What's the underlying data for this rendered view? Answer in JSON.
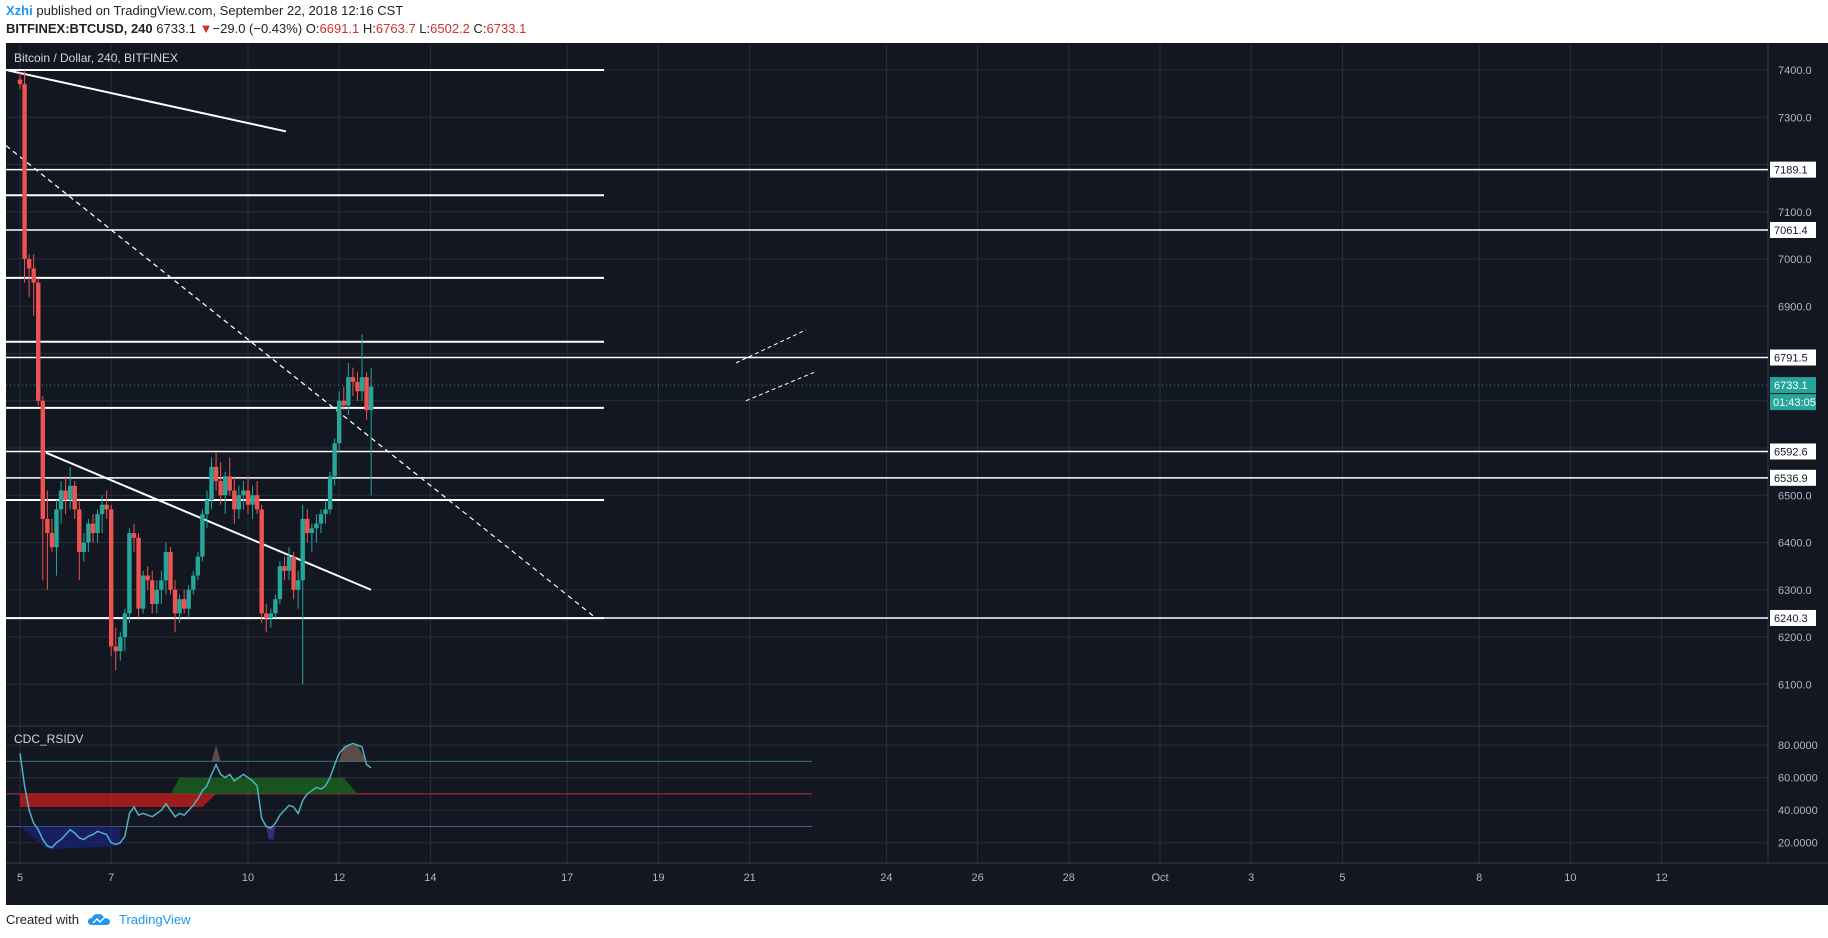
{
  "header": {
    "user": "Xzhi",
    "published_text": "published on TradingView.com, September 22, 2018 12:16 CST",
    "symbol": "BITFINEX:BTCUSD, 240",
    "last": "6733.1",
    "change_arrow": "▼",
    "change": "−29.0 (−0.43%)",
    "o_label": "O:",
    "o": "6691.1",
    "h_label": "H:",
    "h": "6763.7",
    "l_label": "L:",
    "l": "6502.2",
    "c_label": "C:",
    "c": "6733.1"
  },
  "footer": {
    "created_with": "Created with",
    "brand": "TradingView",
    "logo_icon": "tradingview-cloud-icon"
  },
  "colors": {
    "background": "#131722",
    "up": "#26a69a",
    "down": "#ef5350",
    "grid": "#2a2e39",
    "text": "#b2b5be",
    "level": "#ffffff"
  },
  "chart_data": {
    "type": "candlestick",
    "title": "Bitcoin / Dollar, 240, BITFINEX",
    "price_axis": {
      "ticks": [
        "7400.0",
        "7300.0",
        "7100.0",
        "7000.0",
        "6900.0",
        "6500.0",
        "6400.0",
        "6300.0",
        "6200.0",
        "6100.0"
      ],
      "range": [
        6050,
        7450
      ]
    },
    "time_axis": {
      "ticks": [
        "5",
        "7",
        "10",
        "12",
        "14",
        "17",
        "19",
        "21",
        "24",
        "26",
        "28",
        "Oct",
        "3",
        "5",
        "8",
        "10",
        "12"
      ]
    },
    "horizontal_levels": [
      "7189.1",
      "7061.4",
      "6791.5",
      "6592.6",
      "6536.9",
      "6240.3"
    ],
    "short_levels": [
      7400,
      7135,
      6960,
      6825,
      6685,
      6490,
      6240
    ],
    "last_price": "6733.1",
    "countdown": "01:43:05",
    "candles": [
      [
        5.0,
        7380,
        7395,
        7360,
        7370
      ],
      [
        5.1,
        7370,
        7400,
        6950,
        7000
      ],
      [
        5.2,
        7000,
        7010,
        6920,
        6980
      ],
      [
        5.3,
        6980,
        7010,
        6880,
        6950
      ],
      [
        5.4,
        6950,
        6960,
        6690,
        6700
      ],
      [
        5.5,
        6700,
        6710,
        6320,
        6450
      ],
      [
        5.6,
        6450,
        6510,
        6300,
        6420
      ],
      [
        5.7,
        6420,
        6450,
        6380,
        6390
      ],
      [
        5.8,
        6390,
        6490,
        6330,
        6470
      ],
      [
        5.9,
        6470,
        6530,
        6440,
        6510
      ],
      [
        6.0,
        6510,
        6540,
        6460,
        6490
      ],
      [
        6.1,
        6490,
        6560,
        6470,
        6520
      ],
      [
        6.2,
        6520,
        6530,
        6450,
        6470
      ],
      [
        6.3,
        6470,
        6490,
        6320,
        6380
      ],
      [
        6.4,
        6380,
        6420,
        6360,
        6400
      ],
      [
        6.5,
        6400,
        6450,
        6380,
        6440
      ],
      [
        6.6,
        6440,
        6460,
        6400,
        6420
      ],
      [
        6.7,
        6420,
        6470,
        6400,
        6460
      ],
      [
        6.8,
        6460,
        6500,
        6420,
        6480
      ],
      [
        6.9,
        6480,
        6510,
        6450,
        6470
      ],
      [
        7.0,
        6470,
        6480,
        6160,
        6180
      ],
      [
        7.1,
        6180,
        6220,
        6130,
        6170
      ],
      [
        7.2,
        6170,
        6210,
        6150,
        6200
      ],
      [
        7.3,
        6200,
        6260,
        6170,
        6250
      ],
      [
        7.4,
        6250,
        6430,
        6230,
        6420
      ],
      [
        7.5,
        6420,
        6440,
        6380,
        6410
      ],
      [
        7.6,
        6410,
        6420,
        6240,
        6260
      ],
      [
        7.7,
        6260,
        6340,
        6250,
        6330
      ],
      [
        7.8,
        6330,
        6350,
        6300,
        6320
      ],
      [
        7.9,
        6320,
        6340,
        6250,
        6270
      ],
      [
        8.0,
        6270,
        6320,
        6250,
        6300
      ],
      [
        8.1,
        6300,
        6340,
        6270,
        6320
      ],
      [
        8.2,
        6320,
        6400,
        6290,
        6380
      ],
      [
        8.3,
        6380,
        6390,
        6290,
        6300
      ],
      [
        8.4,
        6300,
        6320,
        6210,
        6250
      ],
      [
        8.5,
        6250,
        6290,
        6230,
        6280
      ],
      [
        8.6,
        6280,
        6300,
        6250,
        6260
      ],
      [
        8.7,
        6260,
        6310,
        6240,
        6300
      ],
      [
        8.8,
        6300,
        6340,
        6290,
        6330
      ],
      [
        8.9,
        6330,
        6380,
        6320,
        6370
      ],
      [
        9.0,
        6370,
        6470,
        6360,
        6460
      ],
      [
        9.1,
        6460,
        6510,
        6430,
        6490
      ],
      [
        9.2,
        6490,
        6580,
        6470,
        6560
      ],
      [
        9.3,
        6560,
        6590,
        6510,
        6530
      ],
      [
        9.4,
        6530,
        6570,
        6480,
        6500
      ],
      [
        9.5,
        6500,
        6550,
        6460,
        6540
      ],
      [
        9.6,
        6540,
        6580,
        6500,
        6510
      ],
      [
        9.7,
        6510,
        6540,
        6440,
        6470
      ],
      [
        9.8,
        6470,
        6520,
        6450,
        6500
      ],
      [
        9.9,
        6500,
        6530,
        6470,
        6510
      ],
      [
        10.0,
        6510,
        6540,
        6460,
        6480
      ],
      [
        10.1,
        6480,
        6520,
        6450,
        6500
      ],
      [
        10.2,
        6500,
        6530,
        6460,
        6470
      ],
      [
        10.3,
        6470,
        6480,
        6230,
        6250
      ],
      [
        10.4,
        6250,
        6270,
        6210,
        6240
      ],
      [
        10.5,
        6240,
        6260,
        6220,
        6250
      ],
      [
        10.6,
        6250,
        6290,
        6240,
        6280
      ],
      [
        10.7,
        6280,
        6360,
        6270,
        6350
      ],
      [
        10.8,
        6350,
        6370,
        6320,
        6340
      ],
      [
        10.9,
        6340,
        6390,
        6320,
        6370
      ],
      [
        11.0,
        6370,
        6380,
        6280,
        6300
      ],
      [
        11.1,
        6300,
        6340,
        6260,
        6320
      ],
      [
        11.2,
        6320,
        6480,
        6100,
        6450
      ],
      [
        11.3,
        6450,
        6470,
        6400,
        6420
      ],
      [
        11.4,
        6420,
        6440,
        6380,
        6430
      ],
      [
        11.5,
        6430,
        6460,
        6400,
        6440
      ],
      [
        11.6,
        6440,
        6470,
        6420,
        6460
      ],
      [
        11.7,
        6460,
        6490,
        6440,
        6470
      ],
      [
        11.8,
        6470,
        6550,
        6460,
        6540
      ],
      [
        11.9,
        6540,
        6620,
        6520,
        6610
      ],
      [
        12.0,
        6610,
        6720,
        6590,
        6700
      ],
      [
        12.1,
        6700,
        6730,
        6680,
        6690
      ],
      [
        12.2,
        6690,
        6780,
        6670,
        6750
      ],
      [
        12.3,
        6750,
        6770,
        6710,
        6740
      ],
      [
        12.4,
        6740,
        6760,
        6700,
        6720
      ],
      [
        12.5,
        6720,
        6840,
        6700,
        6750
      ],
      [
        12.6,
        6750,
        6760,
        6660,
        6680
      ],
      [
        12.7,
        6680,
        6770,
        6500,
        6730
      ]
    ]
  },
  "indicator": {
    "name": "CDC_RSIDV",
    "ticks": [
      "80.0000",
      "60.0000",
      "40.0000",
      "20.0000"
    ],
    "range": [
      10,
      85
    ],
    "upper": 70,
    "mid": 50,
    "lower": 30,
    "line": [
      [
        5.0,
        75
      ],
      [
        5.1,
        55
      ],
      [
        5.2,
        40
      ],
      [
        5.3,
        32
      ],
      [
        5.4,
        28
      ],
      [
        5.5,
        22
      ],
      [
        5.6,
        18
      ],
      [
        5.7,
        17
      ],
      [
        5.8,
        20
      ],
      [
        5.9,
        22
      ],
      [
        6.0,
        25
      ],
      [
        6.1,
        28
      ],
      [
        6.2,
        26
      ],
      [
        6.3,
        23
      ],
      [
        6.4,
        22
      ],
      [
        6.5,
        24
      ],
      [
        6.6,
        25
      ],
      [
        6.7,
        27
      ],
      [
        6.8,
        26
      ],
      [
        6.9,
        25
      ],
      [
        7.0,
        20
      ],
      [
        7.1,
        19
      ],
      [
        7.2,
        20
      ],
      [
        7.3,
        24
      ],
      [
        7.4,
        38
      ],
      [
        7.5,
        42
      ],
      [
        7.6,
        37
      ],
      [
        7.7,
        38
      ],
      [
        7.8,
        37
      ],
      [
        7.9,
        36
      ],
      [
        8.0,
        38
      ],
      [
        8.1,
        40
      ],
      [
        8.2,
        44
      ],
      [
        8.3,
        40
      ],
      [
        8.4,
        36
      ],
      [
        8.5,
        38
      ],
      [
        8.6,
        37
      ],
      [
        8.7,
        40
      ],
      [
        8.8,
        43
      ],
      [
        8.9,
        47
      ],
      [
        9.0,
        52
      ],
      [
        9.1,
        55
      ],
      [
        9.2,
        62
      ],
      [
        9.3,
        68
      ],
      [
        9.4,
        62
      ],
      [
        9.5,
        60
      ],
      [
        9.6,
        62
      ],
      [
        9.7,
        58
      ],
      [
        9.8,
        60
      ],
      [
        9.9,
        62
      ],
      [
        10.0,
        60
      ],
      [
        10.1,
        58
      ],
      [
        10.2,
        55
      ],
      [
        10.3,
        35
      ],
      [
        10.4,
        30
      ],
      [
        10.5,
        29
      ],
      [
        10.6,
        32
      ],
      [
        10.7,
        37
      ],
      [
        10.8,
        40
      ],
      [
        10.9,
        43
      ],
      [
        11.0,
        42
      ],
      [
        11.1,
        38
      ],
      [
        11.2,
        46
      ],
      [
        11.3,
        50
      ],
      [
        11.4,
        52
      ],
      [
        11.5,
        54
      ],
      [
        11.6,
        53
      ],
      [
        11.7,
        55
      ],
      [
        11.8,
        60
      ],
      [
        11.9,
        68
      ],
      [
        12.0,
        75
      ],
      [
        12.1,
        78
      ],
      [
        12.2,
        80
      ],
      [
        12.3,
        81
      ],
      [
        12.4,
        80
      ],
      [
        12.5,
        79
      ],
      [
        12.6,
        68
      ],
      [
        12.7,
        66
      ]
    ]
  }
}
